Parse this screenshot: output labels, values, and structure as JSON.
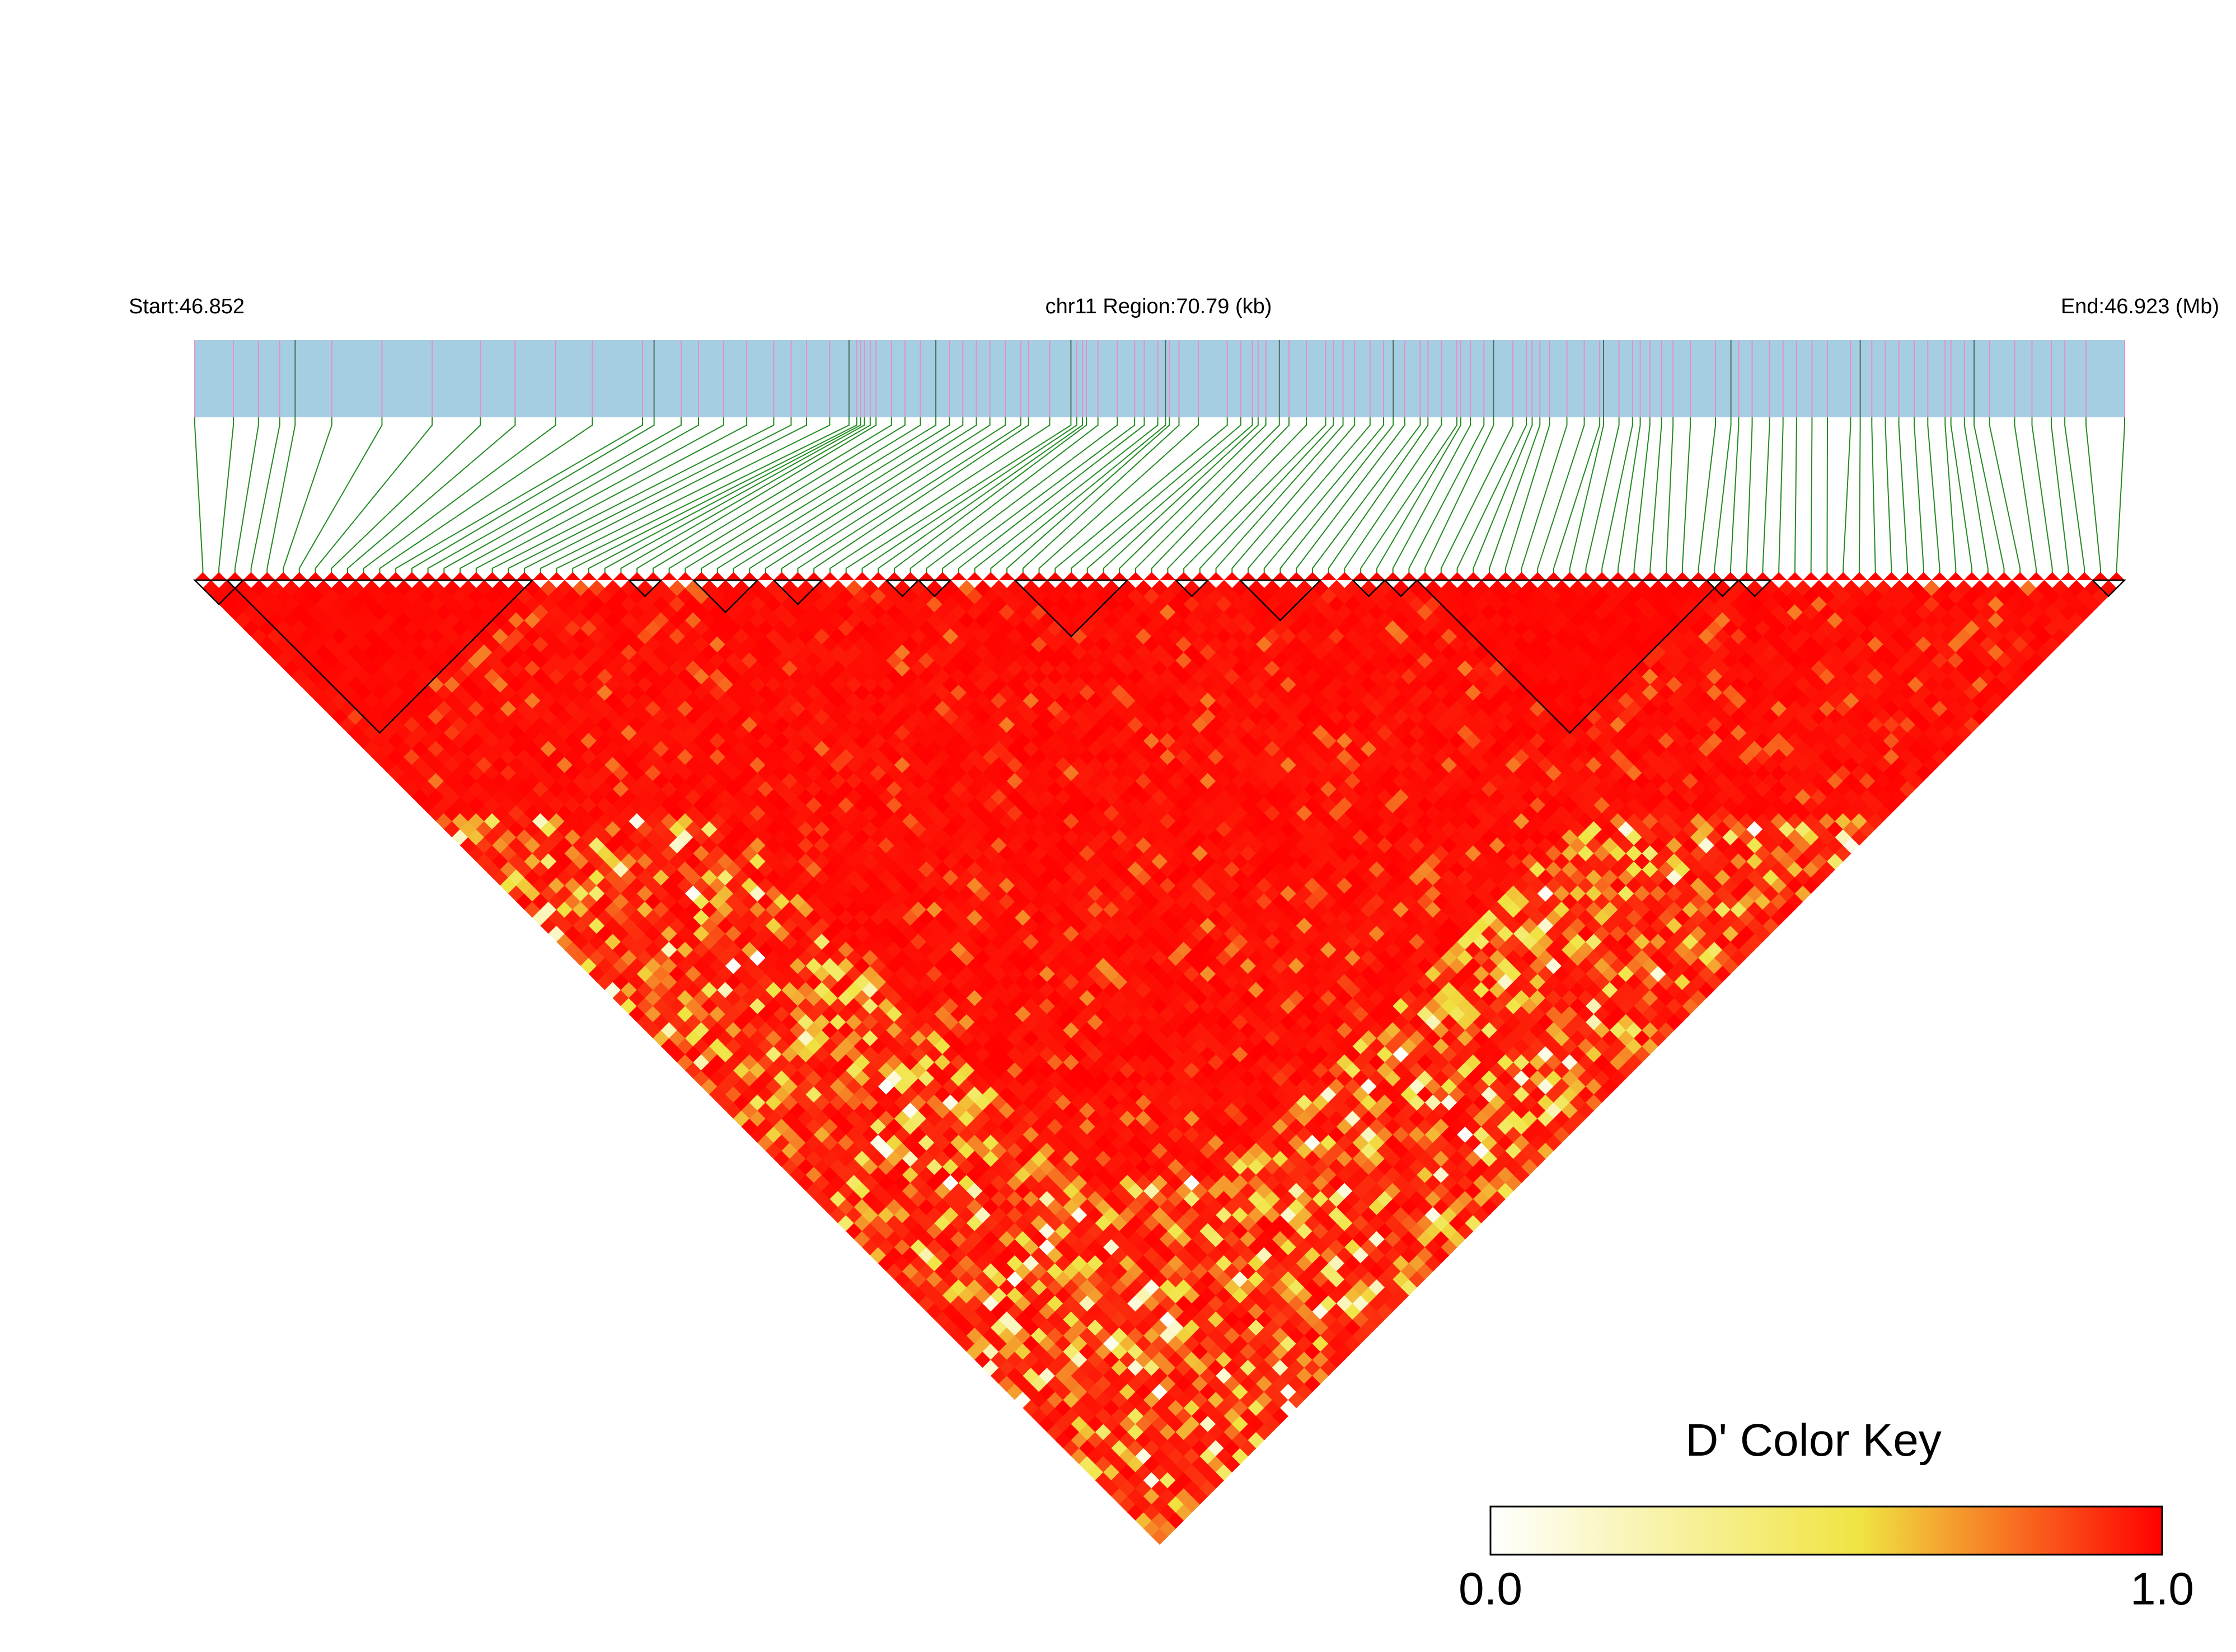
{
  "header": {
    "start_label": "Start:46.852",
    "region_label": "chr11 Region:70.79 (kb)",
    "end_label": "End:46.923 (Mb)"
  },
  "legend": {
    "title": "D' Color Key",
    "min_label": "0.0",
    "max_label": "1.0"
  },
  "colors": {
    "track_fill": "#a6cee3",
    "snp_line_pink": "#e68fc7",
    "snp_line_dark": "#4d6b5a",
    "connector": "#228b22",
    "block_outline": "#000000",
    "scale": [
      "#ffffff",
      "#f0e442",
      "#ff0000"
    ]
  },
  "chart_data": {
    "type": "heatmap",
    "description_kind": "LD (D') triangle heatmap",
    "chromosome": "chr11",
    "start_mb": 46.852,
    "end_mb": 46.923,
    "region_kb": 70.79,
    "snp_count": 120,
    "value_range": [
      0.0,
      1.0
    ],
    "snp_positions_frac": [
      0.0,
      0.02,
      0.033,
      0.044,
      0.052,
      0.071,
      0.097,
      0.123,
      0.148,
      0.166,
      0.187,
      0.206,
      0.232,
      0.238,
      0.252,
      0.261,
      0.274,
      0.286,
      0.3,
      0.309,
      0.317,
      0.329,
      0.339,
      0.343,
      0.345,
      0.347,
      0.35,
      0.353,
      0.361,
      0.368,
      0.376,
      0.384,
      0.391,
      0.398,
      0.405,
      0.412,
      0.42,
      0.428,
      0.432,
      0.443,
      0.454,
      0.457,
      0.46,
      0.462,
      0.468,
      0.478,
      0.487,
      0.492,
      0.499,
      0.503,
      0.505,
      0.51,
      0.52,
      0.535,
      0.542,
      0.548,
      0.551,
      0.555,
      0.562,
      0.567,
      0.576,
      0.586,
      0.59,
      0.595,
      0.601,
      0.609,
      0.616,
      0.621,
      0.627,
      0.635,
      0.639,
      0.646,
      0.654,
      0.656,
      0.661,
      0.668,
      0.673,
      0.683,
      0.69,
      0.693,
      0.697,
      0.702,
      0.711,
      0.72,
      0.728,
      0.73,
      0.738,
      0.745,
      0.749,
      0.754,
      0.76,
      0.766,
      0.775,
      0.788,
      0.796,
      0.8,
      0.807,
      0.816,
      0.823,
      0.83,
      0.838,
      0.846,
      0.858,
      0.863,
      0.869,
      0.876,
      0.883,
      0.891,
      0.898,
      0.907,
      0.91,
      0.917,
      0.922,
      0.93,
      0.943,
      0.952,
      0.962,
      0.969,
      0.98,
      1.0
    ],
    "haplotype_blocks": [
      [
        0,
        2
      ],
      [
        2,
        20
      ],
      [
        27,
        28
      ],
      [
        31,
        34
      ],
      [
        36,
        38
      ],
      [
        43,
        44
      ],
      [
        45,
        46
      ],
      [
        51,
        57
      ],
      [
        61,
        62
      ],
      [
        65,
        69
      ],
      [
        72,
        73
      ],
      [
        74,
        75
      ],
      [
        76,
        94
      ],
      [
        94,
        95
      ],
      [
        96,
        97
      ],
      [
        118,
        119
      ]
    ]
  }
}
